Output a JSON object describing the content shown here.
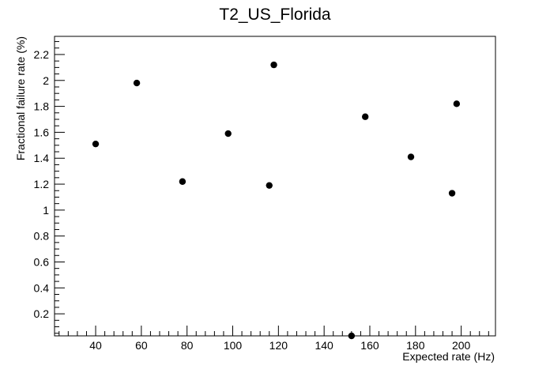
{
  "chart_data": {
    "type": "scatter",
    "title": "T2_US_Florida",
    "xlabel": "Expected rate (Hz)",
    "ylabel": "Fractional failure rate (%)",
    "xlim": [
      22,
      215
    ],
    "ylim": [
      0.03,
      2.34
    ],
    "grid": false,
    "x_ticks": [
      40,
      60,
      80,
      100,
      120,
      140,
      160,
      180,
      200
    ],
    "x_tick_labels": [
      "40",
      "60",
      "80",
      "100",
      "120",
      "140",
      "160",
      "180",
      "200"
    ],
    "y_ticks": [
      0.2,
      0.4,
      0.6,
      0.8,
      1,
      1.2,
      1.4,
      1.6,
      1.8,
      2,
      2.2
    ],
    "y_tick_labels": [
      "0.2",
      "0.4",
      "0.6",
      "0.8",
      "1",
      "1.2",
      "1.4",
      "1.6",
      "1.8",
      "2",
      "2.2"
    ],
    "marker_color": "#000000",
    "points": [
      {
        "x": 40,
        "y": 1.51
      },
      {
        "x": 58,
        "y": 1.98
      },
      {
        "x": 78,
        "y": 1.22
      },
      {
        "x": 98,
        "y": 1.59
      },
      {
        "x": 116,
        "y": 1.19
      },
      {
        "x": 118,
        "y": 2.12
      },
      {
        "x": 152,
        "y": 0.03
      },
      {
        "x": 158,
        "y": 1.72
      },
      {
        "x": 178,
        "y": 1.41
      },
      {
        "x": 196,
        "y": 1.13
      },
      {
        "x": 198,
        "y": 1.82
      }
    ]
  }
}
